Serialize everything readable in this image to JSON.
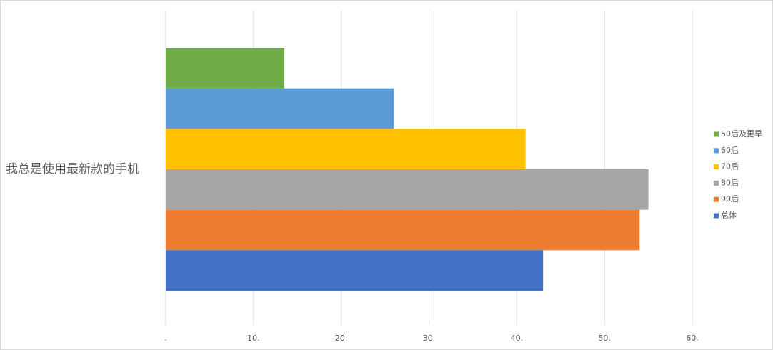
{
  "chart_data": {
    "type": "bar",
    "orientation": "horizontal",
    "categories": [
      "我总是使用最新款的手机"
    ],
    "series": [
      {
        "name": "50后及更早",
        "color": "#70ad47",
        "values": [
          13.5
        ]
      },
      {
        "name": "60后",
        "color": "#5b9bd5",
        "values": [
          26
        ]
      },
      {
        "name": "70后",
        "color": "#ffc000",
        "values": [
          41
        ]
      },
      {
        "name": "80后",
        "color": "#a5a5a5",
        "values": [
          55
        ]
      },
      {
        "name": "90后",
        "color": "#ed7d31",
        "values": [
          54
        ]
      },
      {
        "name": "总体",
        "color": "#4472c4",
        "values": [
          43
        ]
      }
    ],
    "xlim": [
      0,
      60
    ],
    "xticks": [
      {
        "value": 0,
        "label": "."
      },
      {
        "value": 10,
        "label": "10."
      },
      {
        "value": 20,
        "label": "20."
      },
      {
        "value": 30,
        "label": "30."
      },
      {
        "value": 40,
        "label": "40."
      },
      {
        "value": 50,
        "label": "50."
      },
      {
        "value": 60,
        "label": "60."
      }
    ],
    "grid": true,
    "legend": "right"
  }
}
